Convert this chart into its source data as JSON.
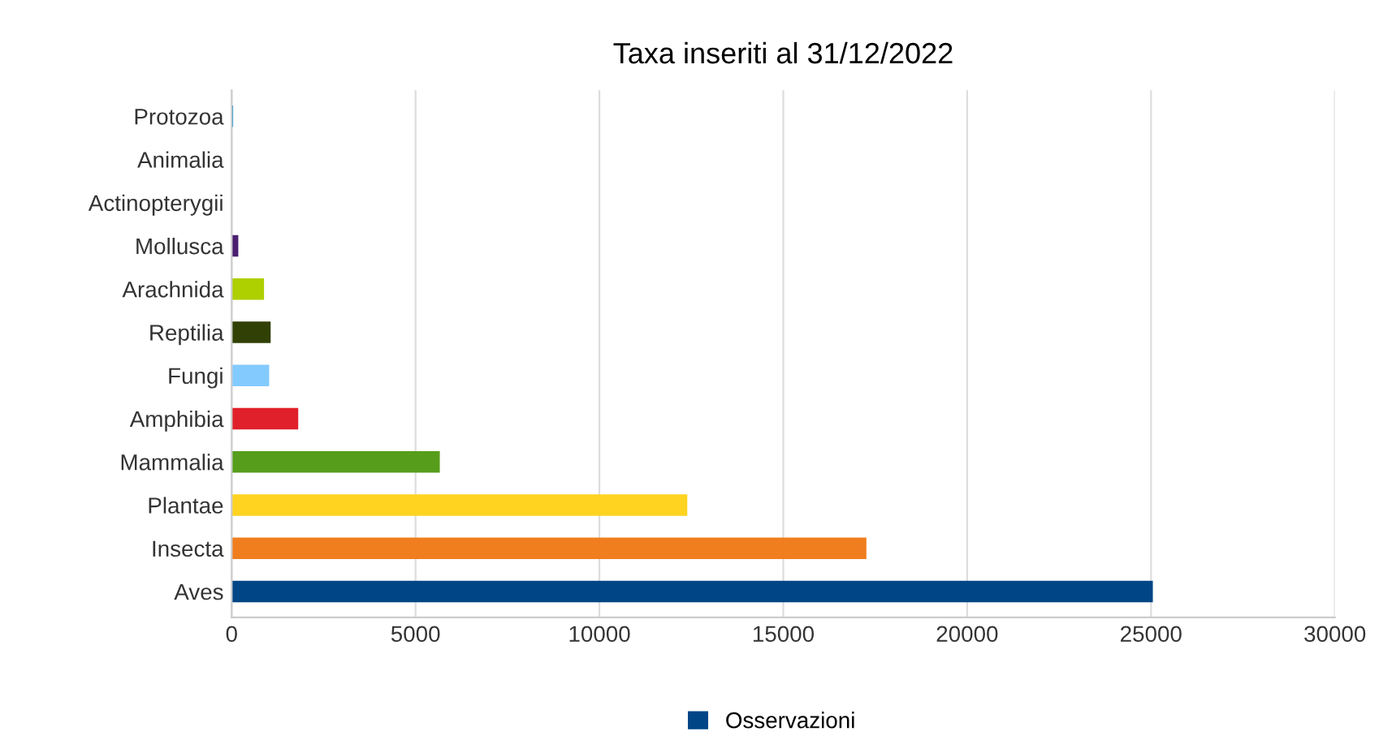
{
  "chart_data": {
    "type": "bar",
    "orientation": "horizontal",
    "title": "Taxa inseriti al 31/12/2022",
    "categories": [
      "Protozoa",
      "Animalia",
      "Actinopterygii",
      "Mollusca",
      "Arachnida",
      "Reptilia",
      "Fungi",
      "Amphibia",
      "Mammalia",
      "Plantae",
      "Insecta",
      "Aves"
    ],
    "series": [
      {
        "name": "Osservazioni",
        "color": "#004586",
        "colors": [
          "#0084d1",
          "#c5000b",
          "#ff950e",
          "#4b1f6f",
          "#aecf00",
          "#314004",
          "#83caff",
          "#e0202a",
          "#579d1c",
          "#ffd320",
          "#f07d1e",
          "#004586"
        ],
        "values": [
          40,
          null,
          null,
          180,
          880,
          1060,
          1020,
          1810,
          5660,
          12390,
          17260,
          25050
        ]
      }
    ],
    "xlim": [
      0,
      30000
    ],
    "xticks": [
      0,
      5000,
      10000,
      15000,
      20000,
      25000,
      30000
    ],
    "grid": "x",
    "legend": "bottom"
  }
}
